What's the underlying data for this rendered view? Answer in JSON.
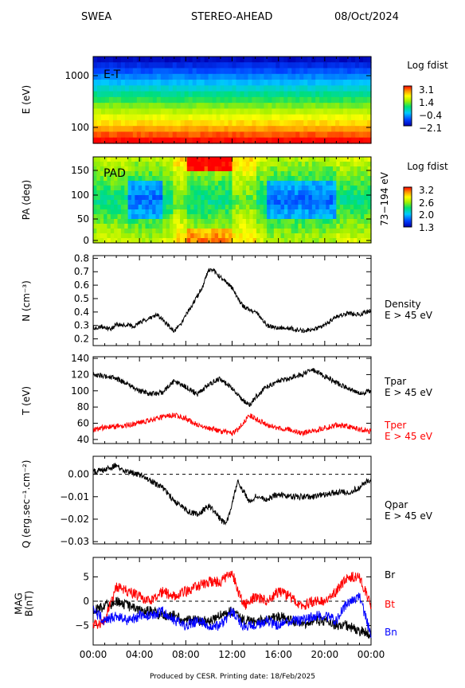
{
  "header": {
    "left": "SWEA",
    "center": "STEREO-AHEAD",
    "right": "08/Oct/2024"
  },
  "footer": "Produced by CESR.   Printing date: 18/Feb/2025",
  "colors": {
    "red_trace": "#ff0000",
    "blue_trace": "#0000ff",
    "black_trace": "#000000"
  },
  "chart_data": [
    {
      "type": "heatmap",
      "id": "et",
      "ylabel": "E (eV)",
      "yscale": "log",
      "yticks": [
        "1000",
        "100"
      ],
      "overlay_label": "E-T",
      "colorbar": {
        "title": "Log fdist",
        "ticks": [
          "3.1",
          "1.4",
          "−0.4",
          "−2.1"
        ],
        "range": [
          -2.1,
          3.1
        ]
      },
      "note": "energy-time spectrogram, flux decreasing with energy"
    },
    {
      "type": "heatmap",
      "id": "pad",
      "ylabel": "PA (deg)",
      "ylim": [
        0,
        180
      ],
      "yticks": [
        "150",
        "100",
        "50",
        "0"
      ],
      "overlay_label": "PAD",
      "right_label": "73−194 eV",
      "colorbar": {
        "title": "Log fdist",
        "ticks": [
          "3.2",
          "2.6",
          "2.0",
          "1.3"
        ],
        "range": [
          1.3,
          3.2
        ]
      }
    },
    {
      "type": "line",
      "id": "density",
      "ylabel": "N (cm⁻³)",
      "ylim": [
        0.15,
        0.82
      ],
      "yticks": [
        "0.8",
        "0.7",
        "0.6",
        "0.5",
        "0.4",
        "0.3",
        "0.2"
      ],
      "series": [
        {
          "name": "Density",
          "sub": "E > 45 eV",
          "color": "#000000",
          "x": [
            0,
            1,
            1.5,
            2,
            2.5,
            3,
            3.5,
            4,
            4.5,
            5,
            5.5,
            6,
            6.5,
            7,
            7.5,
            8,
            8.5,
            9,
            9.5,
            10,
            10.5,
            11,
            11.5,
            12,
            12.5,
            13,
            13.5,
            14,
            14.5,
            15,
            16,
            17,
            18,
            19,
            20,
            21,
            22,
            23,
            24
          ],
          "y": [
            0.28,
            0.29,
            0.27,
            0.31,
            0.3,
            0.31,
            0.29,
            0.32,
            0.34,
            0.36,
            0.38,
            0.34,
            0.3,
            0.26,
            0.3,
            0.38,
            0.44,
            0.52,
            0.6,
            0.72,
            0.7,
            0.66,
            0.62,
            0.58,
            0.5,
            0.44,
            0.42,
            0.4,
            0.36,
            0.3,
            0.28,
            0.28,
            0.26,
            0.27,
            0.3,
            0.37,
            0.39,
            0.38,
            0.41
          ]
        }
      ]
    },
    {
      "type": "line",
      "id": "temperature",
      "ylabel": "T (eV)",
      "ylim": [
        35,
        142
      ],
      "yticks": [
        "140",
        "120",
        "100",
        "80",
        "60",
        "40"
      ],
      "series": [
        {
          "name": "Tpar",
          "sub": "E > 45 eV",
          "color": "#000000",
          "x": [
            0,
            1,
            2,
            3,
            4,
            5,
            6,
            7,
            8,
            9,
            10,
            11,
            12,
            12.5,
            13,
            13.5,
            14,
            15,
            16,
            17,
            18,
            19,
            20,
            21,
            22,
            23,
            24
          ],
          "y": [
            120,
            118,
            115,
            108,
            100,
            96,
            98,
            112,
            105,
            96,
            108,
            115,
            103,
            95,
            88,
            82,
            92,
            105,
            112,
            116,
            120,
            126,
            118,
            110,
            103,
            96,
            100
          ]
        },
        {
          "name": "Tper",
          "sub": "E > 45 eV",
          "color": "#ff0000",
          "x": [
            0,
            1,
            2,
            3,
            4,
            5,
            6,
            7,
            8,
            9,
            10,
            11,
            12,
            12.5,
            13,
            13.5,
            14,
            15,
            16,
            17,
            18,
            19,
            20,
            21,
            22,
            23,
            24
          ],
          "y": [
            52,
            55,
            56,
            58,
            60,
            64,
            68,
            70,
            66,
            58,
            54,
            50,
            48,
            52,
            62,
            70,
            66,
            58,
            54,
            52,
            48,
            50,
            54,
            58,
            56,
            52,
            50
          ]
        }
      ]
    },
    {
      "type": "line",
      "id": "heatflux",
      "ylabel": "Q (erg.sec⁻¹.cm⁻²)",
      "ylim": [
        -0.031,
        0.008
      ],
      "yticks": [
        "0.00",
        "−0.01",
        "−0.02",
        "−0.03"
      ],
      "series": [
        {
          "name": "Qpar",
          "sub": "E > 45 eV",
          "color": "#000000",
          "x": [
            0,
            1,
            2,
            2.5,
            3,
            4,
            5,
            6,
            7,
            8,
            9,
            10,
            11,
            11.5,
            12,
            12.5,
            13,
            13.5,
            14,
            15,
            16,
            17,
            18,
            19,
            20,
            21,
            22,
            23,
            24
          ],
          "y": [
            0.001,
            0.002,
            0.004,
            0.002,
            0.001,
            0.0,
            -0.003,
            -0.006,
            -0.012,
            -0.016,
            -0.018,
            -0.014,
            -0.02,
            -0.022,
            -0.013,
            -0.003,
            -0.008,
            -0.012,
            -0.01,
            -0.011,
            -0.009,
            -0.01,
            -0.01,
            -0.01,
            -0.009,
            -0.008,
            -0.008,
            -0.006,
            -0.002
          ]
        }
      ]
    },
    {
      "type": "line",
      "id": "mag",
      "ylabel": "MAG\nB(nT)",
      "ylim": [
        -9,
        9
      ],
      "yticks": [
        "5",
        "0",
        "−5"
      ],
      "xticks": [
        "00:00",
        "04:00",
        "08:00",
        "12:00",
        "16:00",
        "20:00",
        "00:00"
      ],
      "series": [
        {
          "name": "Br",
          "color": "#000000",
          "x": [
            0,
            1,
            2,
            3,
            4,
            5,
            6,
            7,
            8,
            9,
            10,
            11,
            12,
            12.5,
            13,
            14,
            15,
            16,
            17,
            18,
            19,
            20,
            21,
            22,
            23,
            24
          ],
          "y": [
            -2,
            -1,
            0,
            -1,
            -2,
            -2,
            -3,
            -3,
            -4,
            -4,
            -4,
            -3,
            -2,
            -3,
            -4,
            -4,
            -4,
            -3,
            -4,
            -5,
            -4,
            -4,
            -5,
            -5,
            -6,
            -7
          ]
        },
        {
          "name": "Bt",
          "color": "#ff0000",
          "x": [
            0,
            1,
            2,
            3,
            4,
            5,
            6,
            7,
            8,
            9,
            10,
            11,
            12,
            12.5,
            13,
            14,
            15,
            16,
            17,
            18,
            19,
            20,
            21,
            22,
            23,
            24
          ],
          "y": [
            -5,
            -4,
            3,
            2,
            1,
            0,
            2,
            1,
            2,
            3,
            4,
            4,
            6,
            2,
            -1,
            1,
            0,
            2,
            1,
            -1,
            0,
            0,
            2,
            5,
            5,
            -1
          ]
        },
        {
          "name": "Bn",
          "color": "#0000ff",
          "x": [
            0,
            1,
            2,
            3,
            4,
            5,
            6,
            7,
            8,
            9,
            10,
            11,
            12,
            12.5,
            13,
            14,
            15,
            16,
            17,
            18,
            19,
            20,
            21,
            22,
            23,
            24
          ],
          "y": [
            -2,
            -4,
            -3,
            -4,
            -3,
            -3,
            -2,
            -4,
            -5,
            -4,
            -5,
            -5,
            -2,
            -4,
            -5,
            -5,
            -4,
            -5,
            -4,
            -4,
            -3,
            -3,
            -4,
            0,
            1,
            -7
          ]
        }
      ]
    }
  ]
}
